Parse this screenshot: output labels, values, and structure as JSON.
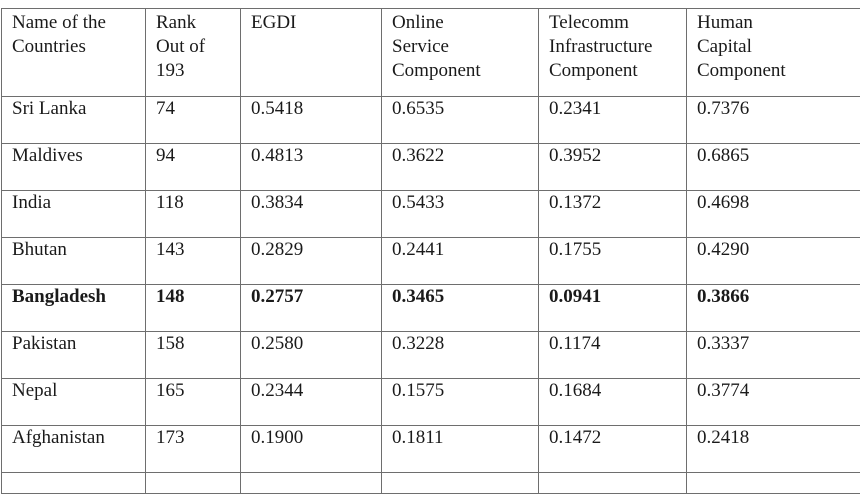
{
  "table": {
    "headers": [
      "Name of the\nCountries",
      "Rank\nOut of\n193",
      "EGDI",
      "Online\nService\nComponent",
      "Telecomm\nInfrastructure\nComponent",
      "Human\nCapital\nComponent"
    ],
    "rows": [
      [
        "Sri Lanka",
        "74",
        "0.5418",
        "0.6535",
        "0.2341",
        "0.7376"
      ],
      [
        "Maldives",
        "94",
        "0.4813",
        "0.3622",
        "0.3952",
        "0.6865"
      ],
      [
        "India",
        "118",
        "0.3834",
        "0.5433",
        "0.1372",
        "0.4698"
      ],
      [
        "Bhutan",
        "143",
        "0.2829",
        "0.2441",
        "0.1755",
        "0.4290"
      ],
      [
        "Bangladesh",
        "148",
        "0.2757",
        "0.3465",
        "0.0941",
        "0.3866"
      ],
      [
        "Pakistan",
        "158",
        "0.2580",
        "0.3228",
        "0.1174",
        "0.3337"
      ],
      [
        "Nepal",
        "165",
        "0.2344",
        "0.1575",
        "0.1684",
        "0.3774"
      ],
      [
        "Afghanistan",
        "173",
        "0.1900",
        "0.1811",
        "0.1472",
        "0.2418"
      ]
    ],
    "highlighted_row": "Bangladesh"
  }
}
